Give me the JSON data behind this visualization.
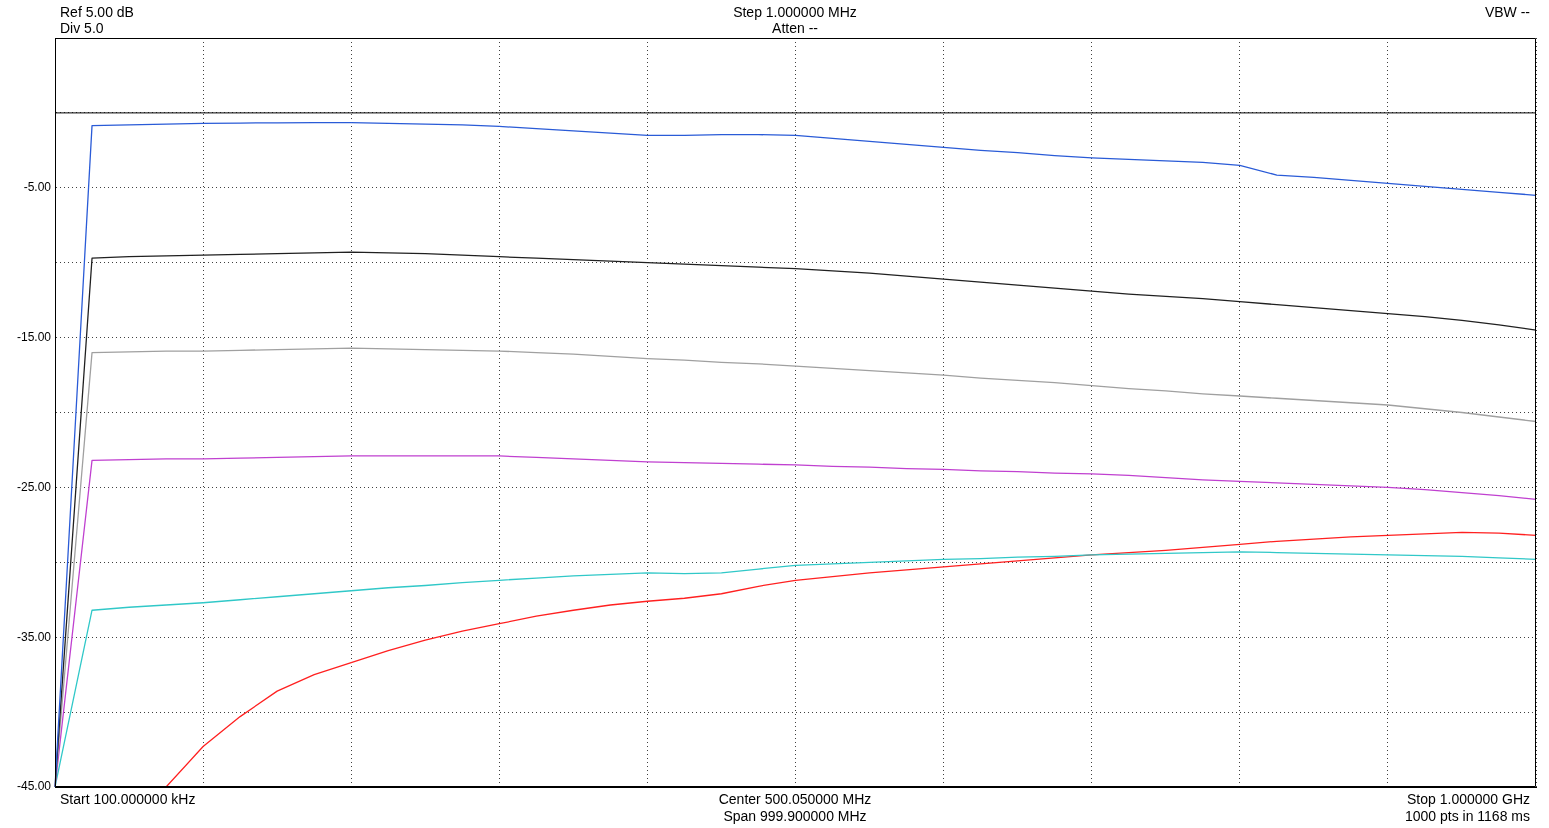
{
  "chart_data": {
    "type": "line",
    "annotations": [
      "Ref 5.00 dB",
      "Div 5.0",
      "Step 1.000000 MHz",
      "Atten --",
      "VBW --",
      "Start 100.000000 kHz",
      "Center 500.050000 MHz",
      "Span 999.900000 MHz",
      "Stop 1.000000 GHz",
      "1000 pts in 1168 ms"
    ],
    "categories": [
      null,
      null,
      null,
      null,
      null,
      null,
      null,
      null,
      null,
      null,
      null,
      null,
      null,
      null,
      null,
      null,
      null,
      null,
      null,
      null,
      null,
      null,
      null,
      null,
      null,
      null,
      null,
      null,
      null,
      null,
      null,
      null,
      null,
      null,
      null,
      null,
      null,
      null,
      null,
      null,
      null
    ],
    "ylim": [
      -45,
      5
    ],
    "yticks": [
      {
        "value": -45,
        "label": "-45.00"
      },
      {
        "value": -40,
        "label": null
      },
      {
        "value": -35,
        "label": "-35.00"
      },
      {
        "value": -30,
        "label": null
      },
      {
        "value": -25,
        "label": "-25.00"
      },
      {
        "value": -20,
        "label": null
      },
      {
        "value": -15,
        "label": "-15.00"
      },
      {
        "value": -10,
        "label": null
      },
      {
        "value": -5,
        "label": "-5.00"
      },
      {
        "value": 0,
        "label": null
      },
      {
        "value": 5,
        "label": null
      }
    ],
    "tick_labels": "y",
    "grid": true,
    "marker": "none",
    "line_style": "solid",
    "ref_lines": [
      {
        "axis": "y",
        "value": 0,
        "color": "#000000"
      }
    ],
    "series": [
      {
        "color": "#2a5bd7",
        "values": [
          -45,
          -0.85,
          -0.8,
          -0.75,
          -0.7,
          -0.68,
          -0.66,
          -0.65,
          -0.65,
          -0.7,
          -0.75,
          -0.8,
          -0.9,
          -1.05,
          -1.2,
          -1.35,
          -1.5,
          -1.5,
          -1.45,
          -1.45,
          -1.5,
          -1.7,
          -1.9,
          -2.1,
          -2.3,
          -2.5,
          -2.65,
          -2.85,
          -3,
          -3.1,
          -3.2,
          -3.3,
          -3.5,
          -4.15,
          -4.3,
          -4.5,
          -4.7,
          -4.9,
          -5.1,
          -5.3,
          -5.5
        ]
      },
      {
        "color": "#202020",
        "values": [
          -45,
          -9.7,
          -9.6,
          -9.55,
          -9.5,
          -9.45,
          -9.4,
          -9.35,
          -9.3,
          -9.35,
          -9.4,
          -9.5,
          -9.6,
          -9.7,
          -9.8,
          -9.9,
          -10,
          -10.1,
          -10.2,
          -10.3,
          -10.4,
          -10.55,
          -10.7,
          -10.9,
          -11.1,
          -11.3,
          -11.5,
          -11.7,
          -11.9,
          -12.1,
          -12.25,
          -12.4,
          -12.6,
          -12.8,
          -13,
          -13.2,
          -13.4,
          -13.6,
          -13.85,
          -14.15,
          -14.5
        ]
      },
      {
        "color": "#a0a0a0",
        "values": [
          -45,
          -16,
          -15.95,
          -15.9,
          -15.9,
          -15.85,
          -15.8,
          -15.75,
          -15.7,
          -15.75,
          -15.8,
          -15.85,
          -15.9,
          -16,
          -16.1,
          -16.25,
          -16.4,
          -16.5,
          -16.65,
          -16.75,
          -16.9,
          -17.05,
          -17.2,
          -17.35,
          -17.5,
          -17.7,
          -17.85,
          -18,
          -18.2,
          -18.4,
          -18.55,
          -18.75,
          -18.9,
          -19.05,
          -19.2,
          -19.35,
          -19.5,
          -19.75,
          -20,
          -20.3,
          -20.6
        ]
      },
      {
        "color": "#c040d0",
        "values": [
          -45,
          -23.2,
          -23.15,
          -23.1,
          -23.1,
          -23.05,
          -23,
          -22.95,
          -22.9,
          -22.9,
          -22.9,
          -22.9,
          -22.9,
          -23,
          -23.1,
          -23.2,
          -23.3,
          -23.35,
          -23.4,
          -23.45,
          -23.5,
          -23.6,
          -23.65,
          -23.75,
          -23.8,
          -23.9,
          -23.95,
          -24.05,
          -24.1,
          -24.2,
          -24.35,
          -24.5,
          -24.6,
          -24.7,
          -24.8,
          -24.9,
          -25,
          -25.15,
          -25.35,
          -25.55,
          -25.8
        ]
      },
      {
        "color": "#30c8c8",
        "values": [
          -45,
          -33.2,
          -33,
          -32.85,
          -32.7,
          -32.5,
          -32.3,
          -32.1,
          -31.9,
          -31.7,
          -31.55,
          -31.35,
          -31.2,
          -31.05,
          -30.9,
          -30.8,
          -30.7,
          -30.75,
          -30.7,
          -30.45,
          -30.2,
          -30.1,
          -30,
          -29.9,
          -29.8,
          -29.75,
          -29.65,
          -29.6,
          -29.5,
          -29.45,
          -29.4,
          -29.35,
          -29.3,
          -29.35,
          -29.4,
          -29.45,
          -29.5,
          -29.55,
          -29.6,
          -29.7,
          -29.8
        ]
      },
      {
        "color": "#ff2020",
        "values": [
          null,
          null,
          null,
          -45,
          -42.3,
          -40.3,
          -38.6,
          -37.5,
          -36.7,
          -35.9,
          -35.2,
          -34.6,
          -34.1,
          -33.6,
          -33.2,
          -32.85,
          -32.6,
          -32.4,
          -32.1,
          -31.6,
          -31.2,
          -30.95,
          -30.7,
          -30.5,
          -30.3,
          -30.1,
          -29.9,
          -29.7,
          -29.5,
          -29.35,
          -29.2,
          -29,
          -28.8,
          -28.6,
          -28.45,
          -28.3,
          -28.2,
          -28.1,
          -28,
          -28.05,
          -28.2
        ]
      }
    ]
  }
}
